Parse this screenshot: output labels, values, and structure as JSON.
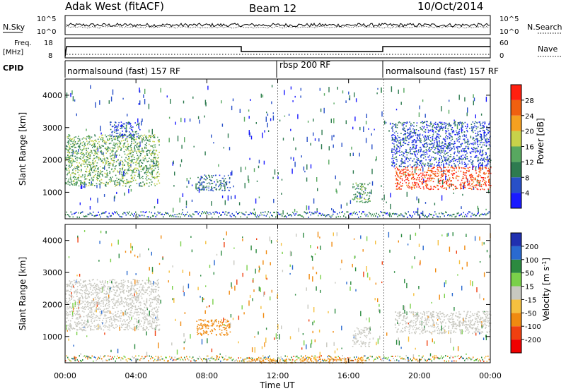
{
  "header": {
    "title_left": "Adak West (fitACF)",
    "title_center": "Beam 12",
    "title_right": "10/Oct/2014"
  },
  "noise_panel": {
    "left_label": "N.Sky",
    "right_label": "N.Search",
    "tick_top": "10^5",
    "tick_bottom": "10^0"
  },
  "freq_panel": {
    "left_label_line1": "Freq.",
    "left_label_line2": "[MHz]",
    "tick_top": "18",
    "tick_bottom": "8",
    "right_tick_top": "60",
    "right_tick_bottom": "0",
    "right_label": "Nave"
  },
  "cpid_panel": {
    "label": "CPID",
    "segments": [
      "normalsound (fast) 157 RF",
      "rbsp 200 RF",
      "normalsound (fast) 157 RF"
    ]
  },
  "colors": {
    "power_scale": [
      "#1a1aff",
      "#2850c8",
      "#2e7b50",
      "#58a860",
      "#c8d24a",
      "#f5a020",
      "#f06010",
      "#ff2010"
    ],
    "velocity_scale": [
      "#2030b0",
      "#2a6ad0",
      "#2c8a40",
      "#7ad04a",
      "#c8c8c0",
      "#f5c040",
      "#f08a10",
      "#f04010",
      "#f00000"
    ]
  },
  "chart_data": [
    {
      "type": "heatmap",
      "quantity": "Power",
      "ylabel": "Slant Range [km]",
      "ylim": [
        180,
        4500
      ],
      "yticks": [
        1000,
        2000,
        3000,
        4000
      ],
      "xlim": [
        0,
        24
      ],
      "colorbar": {
        "label": "Power [dB]",
        "ticks": [
          4,
          8,
          12,
          16,
          20,
          24,
          28
        ]
      },
      "features": [
        {
          "t_start": 0.0,
          "t_end": 5.3,
          "r_start": 1200,
          "r_end": 2800,
          "value_db": 14
        },
        {
          "t_start": 2.5,
          "t_end": 4.2,
          "r_start": 2700,
          "r_end": 3200,
          "value_db": 6
        },
        {
          "t_start": 7.4,
          "t_end": 9.3,
          "r_start": 1050,
          "r_end": 1550,
          "value_db": 8
        },
        {
          "t_start": 16.2,
          "t_end": 17.2,
          "r_start": 700,
          "r_end": 1300,
          "value_db": 12
        },
        {
          "t_start": 18.6,
          "t_end": 24.0,
          "r_start": 1100,
          "r_end": 1800,
          "value_db": 28
        },
        {
          "t_start": 18.4,
          "t_end": 24.0,
          "r_start": 1800,
          "r_end": 3200,
          "value_db": 6
        }
      ]
    },
    {
      "type": "heatmap",
      "quantity": "Velocity",
      "ylabel": "Slant Range [km]",
      "xlabel": "Time UT",
      "ylim": [
        180,
        4500
      ],
      "yticks": [
        1000,
        2000,
        3000,
        4000
      ],
      "xlim": [
        0,
        24
      ],
      "xticks": [
        "00:00",
        "04:00",
        "08:00",
        "12:00",
        "16:00",
        "20:00",
        "00:00"
      ],
      "colorbar": {
        "label": "Velocity [m s^-1]",
        "ticks": [
          200,
          100,
          50,
          15,
          -15,
          -50,
          -100,
          -200
        ]
      },
      "features": [
        {
          "t_start": 0.0,
          "t_end": 5.3,
          "r_start": 1200,
          "r_end": 2800,
          "velocity": 0
        },
        {
          "t_start": 7.4,
          "t_end": 9.3,
          "r_start": 1050,
          "r_end": 1550,
          "velocity": -80
        },
        {
          "t_start": 16.2,
          "t_end": 17.2,
          "r_start": 700,
          "r_end": 1300,
          "velocity": 0
        },
        {
          "t_start": 18.6,
          "t_end": 24.0,
          "r_start": 1100,
          "r_end": 1800,
          "velocity": 0
        },
        {
          "t_start": 10.0,
          "t_end": 17.0,
          "r_start": 180,
          "r_end": 330,
          "velocity": -60
        }
      ]
    }
  ]
}
